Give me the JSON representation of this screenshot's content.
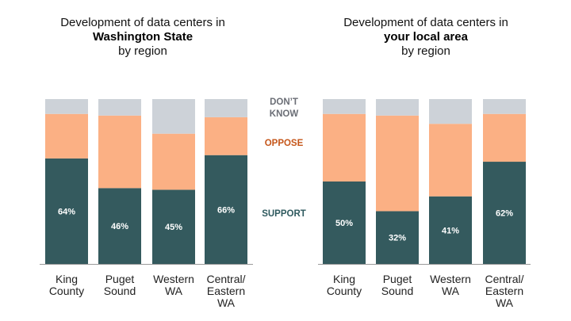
{
  "chart_data": [
    {
      "type": "bar",
      "stacked": true,
      "title": [
        "Development of data centers in",
        "Washington State",
        "by region"
      ],
      "title_bold_line": 1,
      "categories": [
        [
          "King",
          "County"
        ],
        [
          "Puget",
          "Sound"
        ],
        [
          "Western",
          "WA"
        ],
        [
          "Central/",
          "Eastern",
          "WA"
        ]
      ],
      "series": [
        {
          "name": "SUPPORT",
          "values": [
            64,
            46,
            45,
            66
          ],
          "labeled": true
        },
        {
          "name": "OPPOSE",
          "values": [
            27,
            44,
            34,
            23
          ],
          "labeled": false
        },
        {
          "name": "DON'T KNOW",
          "values": [
            9,
            10,
            21,
            11
          ],
          "labeled": false
        }
      ],
      "value_suffix": "%",
      "xlabel": "",
      "ylabel": "",
      "ylim": [
        0,
        100
      ],
      "grid": false
    },
    {
      "type": "bar",
      "stacked": true,
      "title": [
        "Development of data centers in",
        "your local area",
        "by region"
      ],
      "title_bold_line": 1,
      "categories": [
        [
          "King",
          "County"
        ],
        [
          "Puget",
          "Sound"
        ],
        [
          "Western",
          "WA"
        ],
        [
          "Central/",
          "Eastern",
          "WA"
        ]
      ],
      "series": [
        {
          "name": "SUPPORT",
          "values": [
            50,
            32,
            41,
            62
          ],
          "labeled": true
        },
        {
          "name": "OPPOSE",
          "values": [
            41,
            58,
            44,
            29
          ],
          "labeled": false
        },
        {
          "name": "DON'T KNOW",
          "values": [
            9,
            10,
            15,
            9
          ],
          "labeled": false
        }
      ],
      "value_suffix": "%",
      "xlabel": "",
      "ylabel": "",
      "ylim": [
        0,
        100
      ],
      "grid": false
    }
  ],
  "legend": {
    "placement": "center-between-charts",
    "items": [
      {
        "name": "DON'T KNOW",
        "lines": [
          "DON’T",
          "KNOW"
        ],
        "text_color": "#6b6e76",
        "bar_color": "#cdd2d8"
      },
      {
        "name": "OPPOSE",
        "lines": [
          "OPPOSE"
        ],
        "text_color": "#c5561a",
        "bar_color": "#fbb084"
      },
      {
        "name": "SUPPORT",
        "lines": [
          "SUPPORT"
        ],
        "text_color": "#2f5a5f",
        "bar_color": "#345a5e"
      }
    ]
  },
  "colors": {
    "SUPPORT": "#345a5e",
    "OPPOSE": "#fbb084",
    "DON'T KNOW": "#cdd2d8"
  }
}
